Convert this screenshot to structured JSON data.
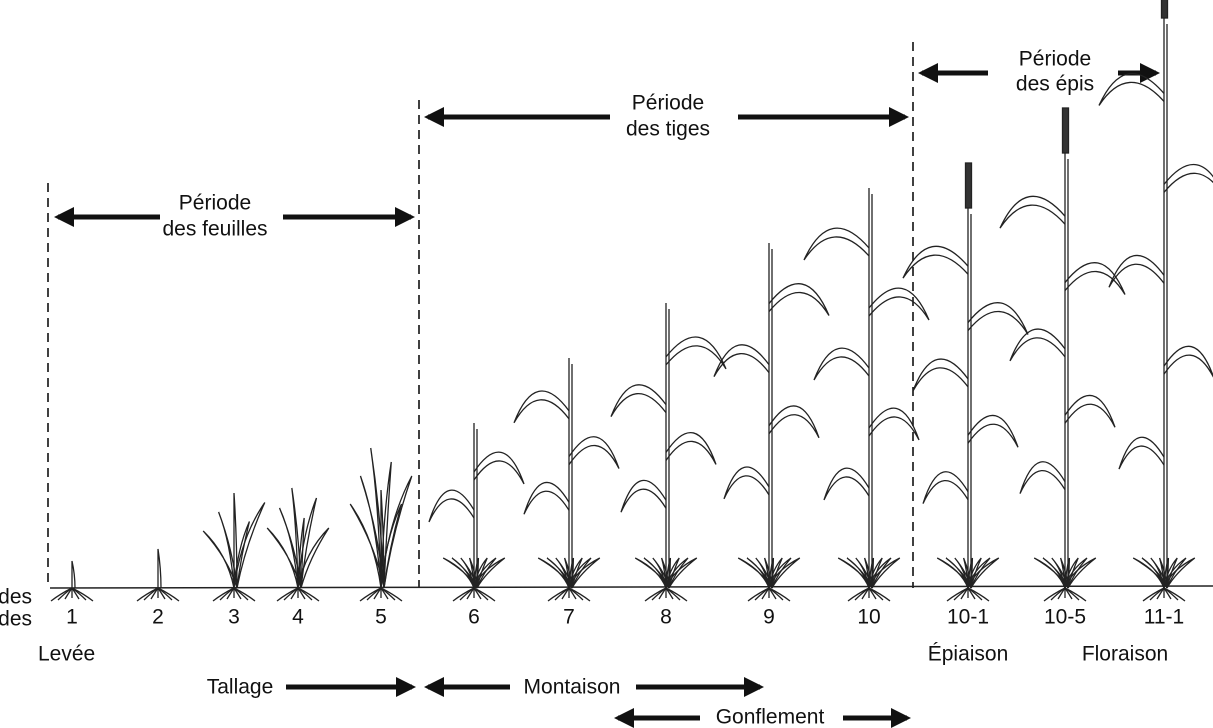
{
  "side_label": [
    "des",
    "des"
  ],
  "periods": [
    {
      "label": [
        "Période",
        "des feuilles"
      ]
    },
    {
      "label": [
        "Période",
        "des tiges"
      ]
    },
    {
      "label": [
        "Période",
        "des épis"
      ]
    }
  ],
  "stages": [
    "1",
    "2",
    "3",
    "4",
    "5",
    "6",
    "7",
    "8",
    "9",
    "10",
    "10-1",
    "10-5",
    "11-1"
  ],
  "phases": {
    "levee": "Levée",
    "tallage": "Tallage",
    "montaison": "Montaison",
    "gonflement": "Gonflement",
    "epiaison": "Épiaison",
    "floraison": "Floraison"
  }
}
